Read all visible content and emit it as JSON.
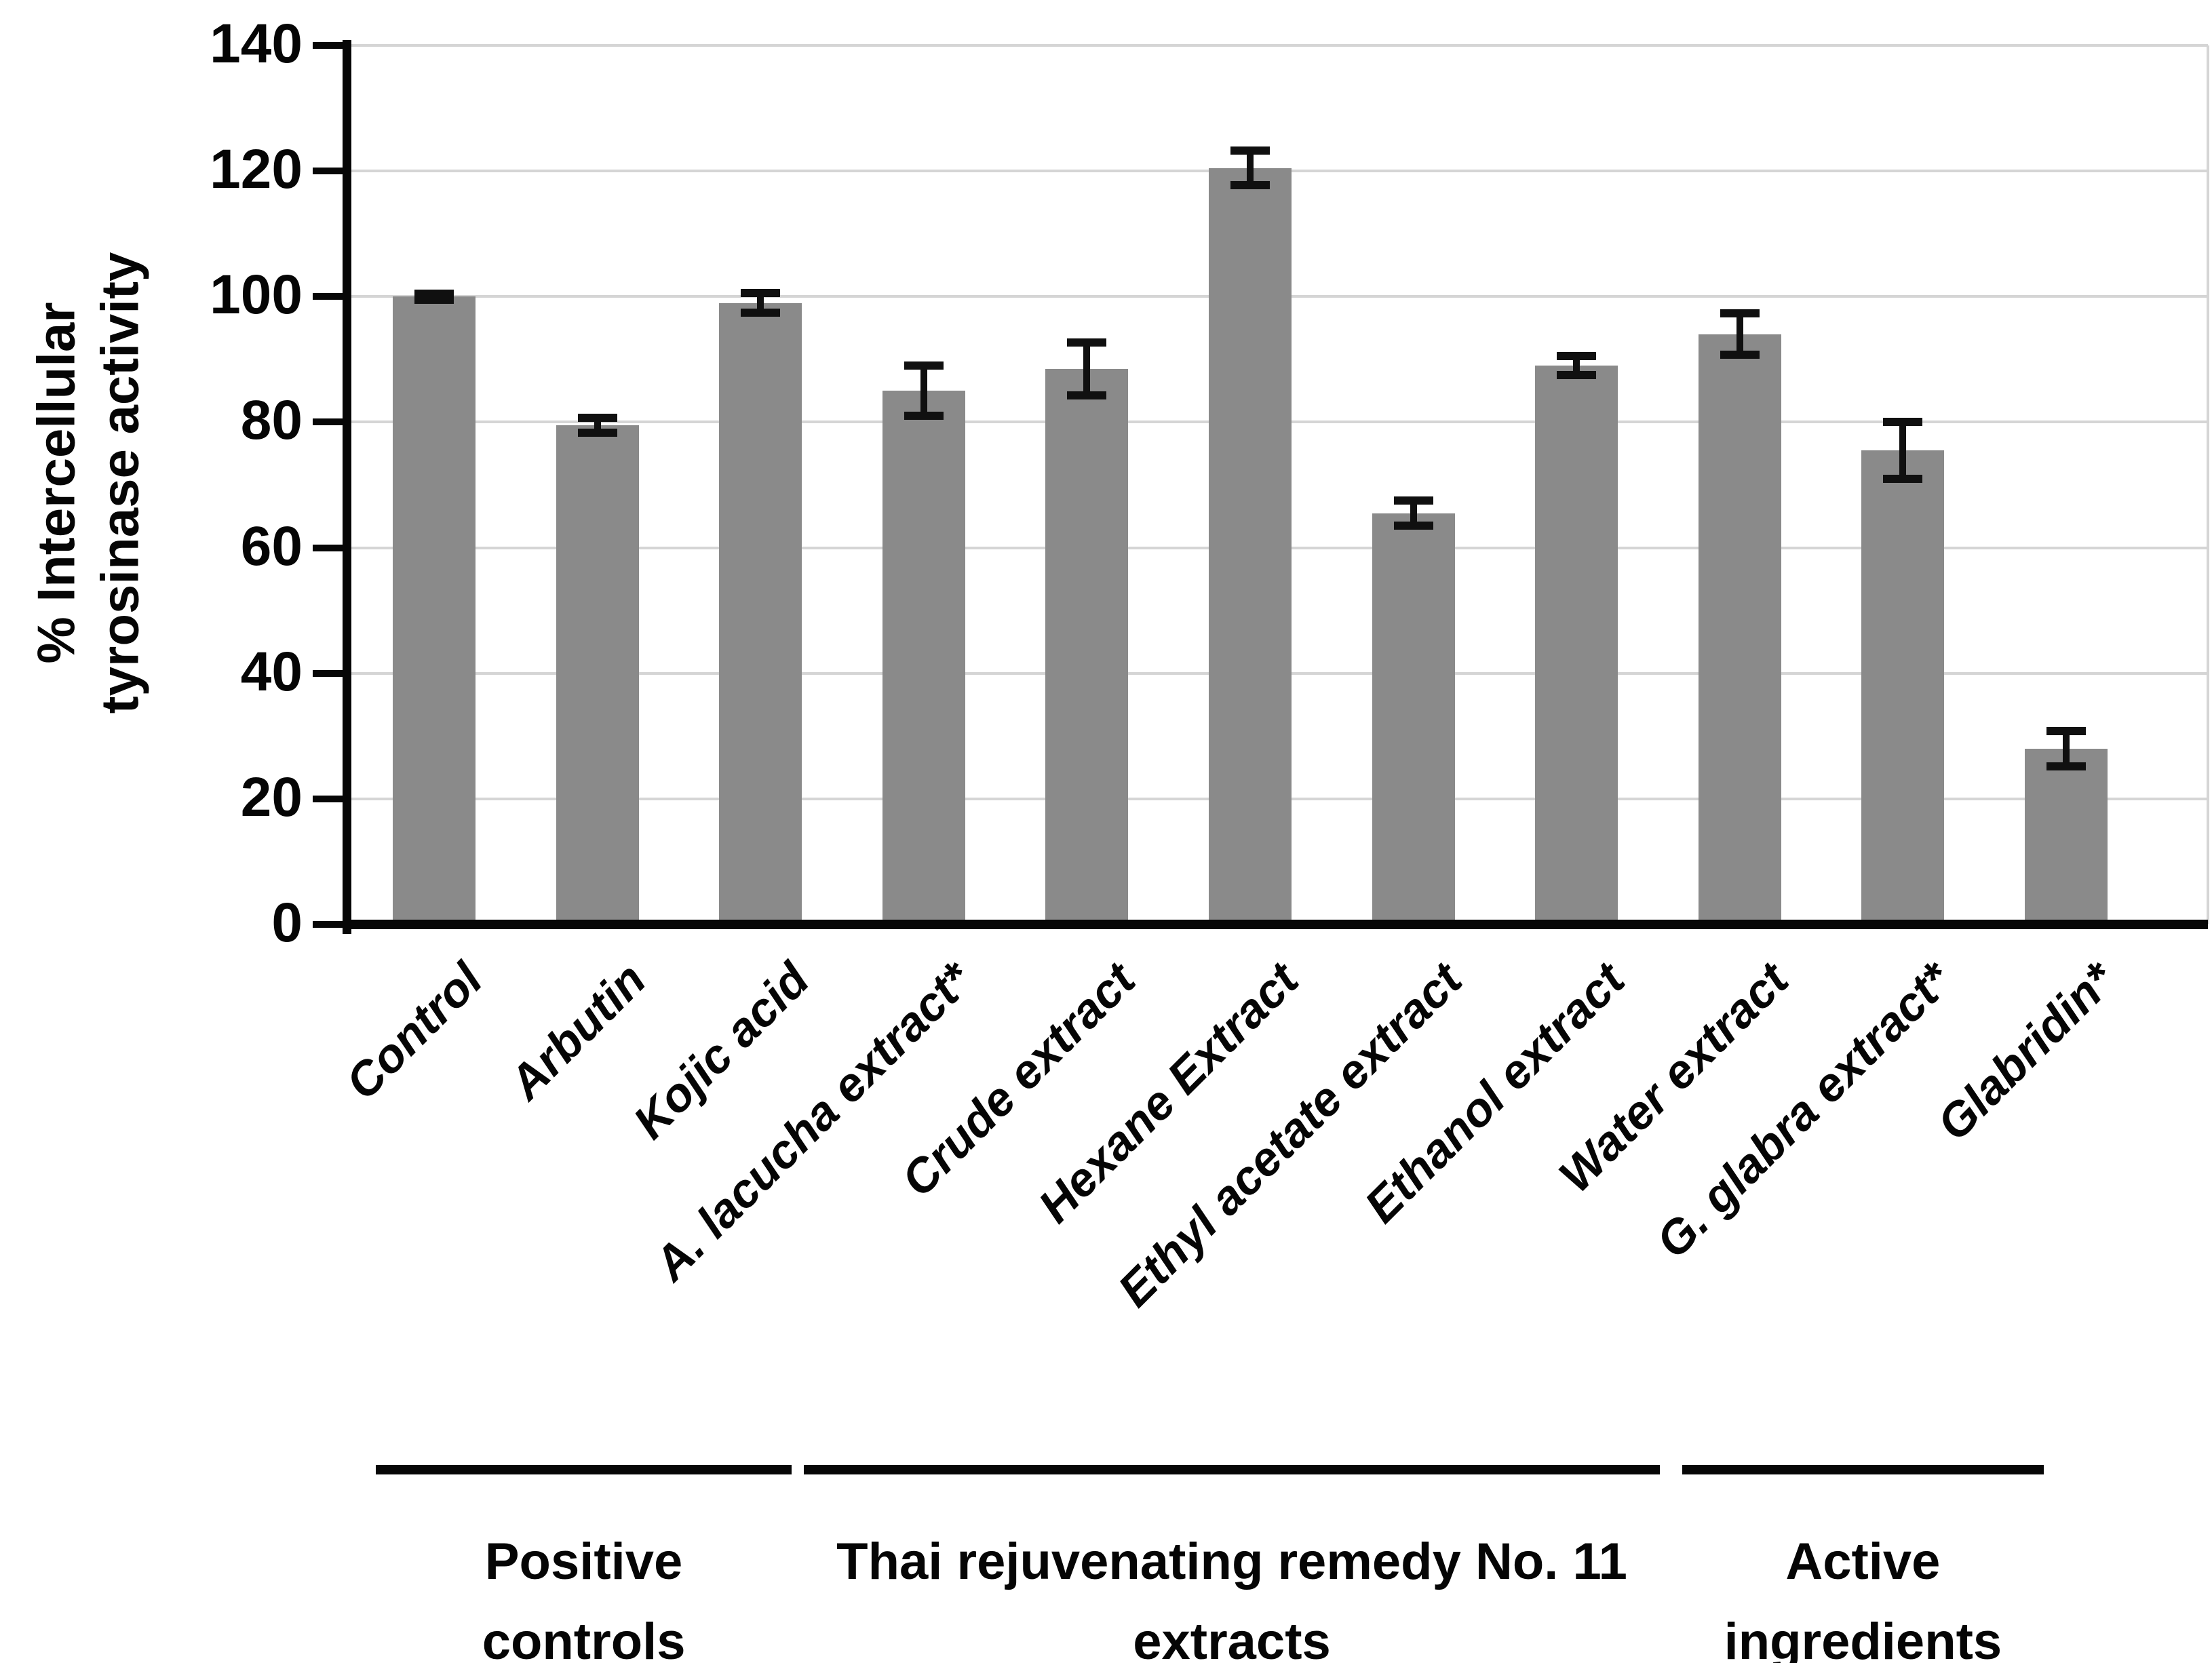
{
  "chart_data": {
    "type": "bar",
    "title": "",
    "ylabel_line1": "% Intercellular",
    "ylabel_line2": "tyrosinase activity",
    "ylim": [
      0,
      140
    ],
    "yticks": [
      0,
      20,
      40,
      60,
      80,
      100,
      120,
      140
    ],
    "grid": true,
    "legend": "none",
    "categories": [
      "Control",
      "Arbutin",
      "Kojic acid",
      "A. lacucha extract*",
      "Crude extract",
      "Hexane Extract",
      "Ethyl acetate extract",
      "Ethanol extract",
      "Water extract",
      "G. glabra extract*",
      "Glabridin*"
    ],
    "values": [
      100,
      79.5,
      99,
      85,
      88.5,
      120.5,
      65.5,
      89,
      94,
      75.5,
      28
    ],
    "errors": [
      0.5,
      1.2,
      1.6,
      4.0,
      4.2,
      2.8,
      2.0,
      1.5,
      3.3,
      4.5,
      2.8
    ],
    "bar_color": "#8a8a8a",
    "error_color": "#101010",
    "axis_color": "#070707",
    "gridline_color": "#d5d5d5",
    "groups": [
      {
        "label_line1": "Positive",
        "label_line2": "controls",
        "start": 0,
        "end": 2
      },
      {
        "label_line1": "Thai rejuvenating  remedy No. 11",
        "label_line2": "extracts",
        "start": 3,
        "end": 7
      },
      {
        "label_line1": "Active",
        "label_line2": "ingredients",
        "start": 8,
        "end": 10
      }
    ]
  }
}
